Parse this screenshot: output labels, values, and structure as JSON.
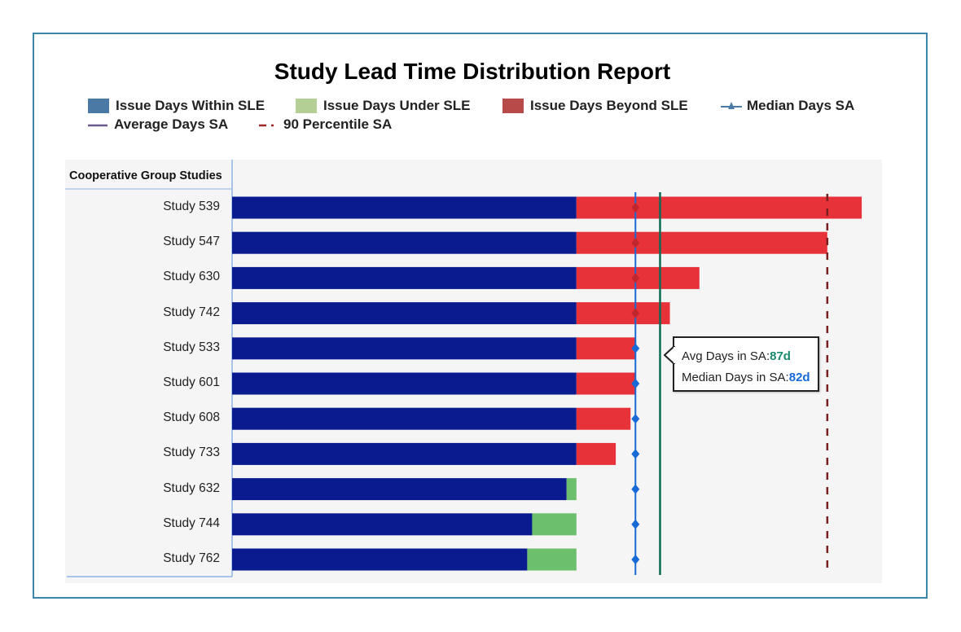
{
  "chart_data": {
    "type": "bar",
    "orientation": "horizontal",
    "stacked": true,
    "title": "Study Lead Time Distribution Report",
    "category_axis_title": "Cooperative Group Studies",
    "categories": [
      "Study 539",
      "Study 547",
      "Study 630",
      "Study 742",
      "Study 533",
      "Study 601",
      "Study 608",
      "Study 733",
      "Study 632",
      "Study 744",
      "Study 762"
    ],
    "series": [
      {
        "name": "Issue Days Within SLE",
        "color": "#0a1a8f",
        "values": [
          70,
          70,
          70,
          70,
          70,
          70,
          70,
          70,
          68,
          61,
          60
        ]
      },
      {
        "name": "Issue Days Under SLE",
        "color": "#6cbf6c",
        "values": [
          0,
          0,
          0,
          0,
          0,
          0,
          0,
          0,
          2,
          9,
          10
        ]
      },
      {
        "name": "Issue Days Beyond SLE",
        "color": "#e8323a",
        "values": [
          58,
          51,
          25,
          19,
          12,
          12,
          11,
          8,
          0,
          0,
          0
        ]
      }
    ],
    "reference_lines": [
      {
        "name": "Median Days SA",
        "value": 82,
        "color": "#1769d6"
      },
      {
        "name": "Average Days SA",
        "value": 87,
        "color": "#0d6b55"
      },
      {
        "name": "90 Percentile SA",
        "value": 121,
        "color": "#7a1f1f"
      }
    ],
    "legend": {
      "position": "top",
      "entries": [
        "Issue Days Within SLE",
        "Issue Days Under SLE",
        "Issue Days Beyond SLE",
        "Median Days SA",
        "Average Days SA",
        "90 Percentile SA"
      ],
      "colors": [
        "#4b79a6",
        "#b3cf96",
        "#b84a4a",
        "#4b79a6",
        "#6b5b8c",
        "#a02525"
      ]
    },
    "xlim": [
      0,
      128
    ],
    "grid": false,
    "tooltip": {
      "avg_label": "Avg Days in SA:",
      "avg_value": "87d",
      "median_label": "Median Days in SA:",
      "median_value": "82d"
    }
  }
}
